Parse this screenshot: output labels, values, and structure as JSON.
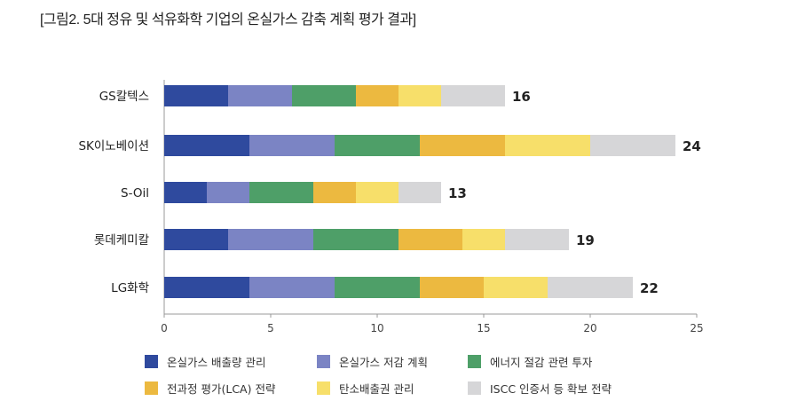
{
  "title": "[그림2. 5대 정유 및 석유화학 기업의 온실가스 감축 계획 평가 결과]",
  "chart_data": {
    "type": "bar",
    "orientation": "horizontal",
    "stacked": true,
    "title": "[그림2. 5대 정유 및 석유화학 기업의 온실가스 감축 계획 평가 결과]",
    "categories": [
      "GS칼텍스",
      "SK이노베이션",
      "S-Oil",
      "롯데케미칼",
      "LG화학"
    ],
    "totals": [
      "16",
      "24",
      "13",
      "19",
      "22"
    ],
    "series": [
      {
        "name": "온실가스 배출량 관리",
        "color": "#2f4a9e",
        "values": [
          3,
          4,
          2,
          3,
          4
        ]
      },
      {
        "name": "온실가스 저감 계획",
        "color": "#7b84c4",
        "values": [
          3,
          4,
          2,
          4,
          4
        ]
      },
      {
        "name": "에너지 절감 관련 투자",
        "color": "#4e9f68",
        "values": [
          3,
          4,
          3,
          4,
          4
        ]
      },
      {
        "name": "전과정 평가(LCA) 전략",
        "color": "#ecb940",
        "values": [
          2,
          4,
          2,
          3,
          3
        ]
      },
      {
        "name": "탄소배출권 관리",
        "color": "#f7df6a",
        "values": [
          2,
          4,
          2,
          2,
          3
        ]
      },
      {
        "name": "ISCC 인증서 등 확보 전략",
        "color": "#d6d6d8",
        "values": [
          3,
          4,
          2,
          3,
          4
        ]
      }
    ],
    "xlim": [
      0,
      25
    ],
    "xticks": [
      "0",
      "5",
      "10",
      "15",
      "20",
      "25"
    ],
    "grid": false,
    "legend": "bottom"
  }
}
